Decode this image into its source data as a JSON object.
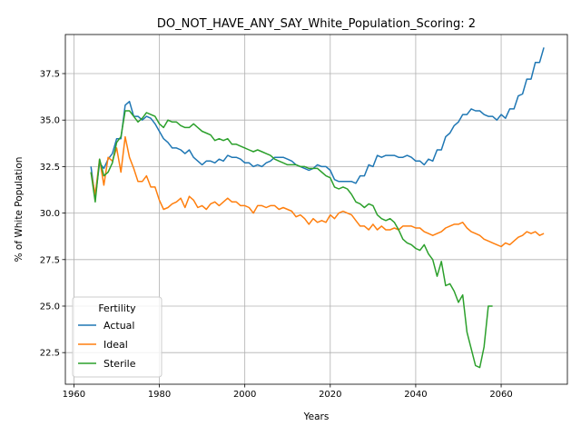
{
  "chart_data": {
    "type": "line",
    "title": "DO_NOT_HAVE_ANY_SAY_White_Population_Scoring: 2",
    "xlabel": "Years",
    "ylabel": "% of White Population",
    "xlim": [
      1958,
      2075.5
    ],
    "ylim": [
      20.8,
      39.6
    ],
    "xticks": [
      1960,
      1980,
      2000,
      2020,
      2040,
      2060
    ],
    "yticks": [
      22.5,
      25.0,
      27.5,
      30.0,
      32.5,
      35.0,
      37.5
    ],
    "ytick_labels": [
      "22.5",
      "25.0",
      "27.5",
      "30.0",
      "32.5",
      "35.0",
      "37.5"
    ],
    "grid": true,
    "legend": {
      "title": "Fertility",
      "placement": "lower-left"
    },
    "series": [
      {
        "name": "Actual",
        "color": "#1f77b4",
        "points": [
          [
            1964,
            32.5
          ],
          [
            1965,
            30.8
          ],
          [
            1966,
            32.7
          ],
          [
            1967,
            32.4
          ],
          [
            1968,
            32.9
          ],
          [
            1969,
            33.2
          ],
          [
            1970,
            34.0
          ],
          [
            1971,
            34.0
          ],
          [
            1972,
            35.8
          ],
          [
            1973,
            36.0
          ],
          [
            1974,
            35.2
          ],
          [
            1975,
            35.2
          ],
          [
            1976,
            35.0
          ],
          [
            1977,
            35.2
          ],
          [
            1978,
            35.1
          ],
          [
            1979,
            34.8
          ],
          [
            1980,
            34.4
          ],
          [
            1981,
            34.0
          ],
          [
            1982,
            33.8
          ],
          [
            1983,
            33.5
          ],
          [
            1984,
            33.5
          ],
          [
            1985,
            33.4
          ],
          [
            1986,
            33.2
          ],
          [
            1987,
            33.4
          ],
          [
            1988,
            33.0
          ],
          [
            1989,
            32.8
          ],
          [
            1990,
            32.6
          ],
          [
            1991,
            32.8
          ],
          [
            1992,
            32.8
          ],
          [
            1993,
            32.7
          ],
          [
            1994,
            32.9
          ],
          [
            1995,
            32.8
          ],
          [
            1996,
            33.1
          ],
          [
            1997,
            33.0
          ],
          [
            1998,
            33.0
          ],
          [
            1999,
            32.9
          ],
          [
            2000,
            32.7
          ],
          [
            2001,
            32.7
          ],
          [
            2002,
            32.5
          ],
          [
            2003,
            32.6
          ],
          [
            2004,
            32.5
          ],
          [
            2005,
            32.7
          ],
          [
            2006,
            32.8
          ],
          [
            2007,
            33.0
          ],
          [
            2008,
            33.0
          ],
          [
            2009,
            33.0
          ],
          [
            2010,
            32.9
          ],
          [
            2011,
            32.8
          ],
          [
            2012,
            32.6
          ],
          [
            2013,
            32.5
          ],
          [
            2014,
            32.4
          ],
          [
            2015,
            32.3
          ],
          [
            2016,
            32.4
          ],
          [
            2017,
            32.6
          ],
          [
            2018,
            32.5
          ],
          [
            2019,
            32.5
          ],
          [
            2020,
            32.3
          ],
          [
            2021,
            31.8
          ],
          [
            2022,
            31.7
          ],
          [
            2023,
            31.7
          ],
          [
            2024,
            31.7
          ],
          [
            2025,
            31.7
          ],
          [
            2026,
            31.6
          ],
          [
            2027,
            32.0
          ],
          [
            2028,
            32.0
          ],
          [
            2029,
            32.6
          ],
          [
            2030,
            32.5
          ],
          [
            2031,
            33.1
          ],
          [
            2032,
            33.0
          ],
          [
            2033,
            33.1
          ],
          [
            2034,
            33.1
          ],
          [
            2035,
            33.1
          ],
          [
            2036,
            33.0
          ],
          [
            2037,
            33.0
          ],
          [
            2038,
            33.1
          ],
          [
            2039,
            33.0
          ],
          [
            2040,
            32.8
          ],
          [
            2041,
            32.8
          ],
          [
            2042,
            32.6
          ],
          [
            2043,
            32.9
          ],
          [
            2044,
            32.8
          ],
          [
            2045,
            33.4
          ],
          [
            2046,
            33.4
          ],
          [
            2047,
            34.1
          ],
          [
            2048,
            34.3
          ],
          [
            2049,
            34.7
          ],
          [
            2050,
            34.9
          ],
          [
            2051,
            35.3
          ],
          [
            2052,
            35.3
          ],
          [
            2053,
            35.6
          ],
          [
            2054,
            35.5
          ],
          [
            2055,
            35.5
          ],
          [
            2056,
            35.3
          ],
          [
            2057,
            35.2
          ],
          [
            2058,
            35.2
          ],
          [
            2059,
            35.0
          ],
          [
            2060,
            35.3
          ],
          [
            2061,
            35.1
          ],
          [
            2062,
            35.6
          ],
          [
            2063,
            35.6
          ],
          [
            2064,
            36.3
          ],
          [
            2065,
            36.4
          ],
          [
            2066,
            37.2
          ],
          [
            2067,
            37.2
          ],
          [
            2068,
            38.1
          ],
          [
            2069,
            38.1
          ],
          [
            2070,
            38.9
          ]
        ]
      },
      {
        "name": "Ideal",
        "color": "#ff7f0e",
        "points": [
          [
            1964,
            32.2
          ],
          [
            1965,
            31.0
          ],
          [
            1966,
            32.9
          ],
          [
            1967,
            31.5
          ],
          [
            1968,
            33.0
          ],
          [
            1969,
            32.8
          ],
          [
            1970,
            33.5
          ],
          [
            1971,
            32.2
          ],
          [
            1972,
            34.1
          ],
          [
            1973,
            33.0
          ],
          [
            1974,
            32.4
          ],
          [
            1975,
            31.7
          ],
          [
            1976,
            31.7
          ],
          [
            1977,
            32.0
          ],
          [
            1978,
            31.4
          ],
          [
            1979,
            31.4
          ],
          [
            1980,
            30.7
          ],
          [
            1981,
            30.2
          ],
          [
            1982,
            30.3
          ],
          [
            1983,
            30.5
          ],
          [
            1984,
            30.6
          ],
          [
            1985,
            30.8
          ],
          [
            1986,
            30.3
          ],
          [
            1987,
            30.9
          ],
          [
            1988,
            30.7
          ],
          [
            1989,
            30.3
          ],
          [
            1990,
            30.4
          ],
          [
            1991,
            30.2
          ],
          [
            1992,
            30.5
          ],
          [
            1993,
            30.6
          ],
          [
            1994,
            30.4
          ],
          [
            1995,
            30.6
          ],
          [
            1996,
            30.8
          ],
          [
            1997,
            30.6
          ],
          [
            1998,
            30.6
          ],
          [
            1999,
            30.4
          ],
          [
            2000,
            30.4
          ],
          [
            2001,
            30.3
          ],
          [
            2002,
            30.0
          ],
          [
            2003,
            30.4
          ],
          [
            2004,
            30.4
          ],
          [
            2005,
            30.3
          ],
          [
            2006,
            30.4
          ],
          [
            2007,
            30.4
          ],
          [
            2008,
            30.2
          ],
          [
            2009,
            30.3
          ],
          [
            2010,
            30.2
          ],
          [
            2011,
            30.1
          ],
          [
            2012,
            29.8
          ],
          [
            2013,
            29.9
          ],
          [
            2014,
            29.7
          ],
          [
            2015,
            29.4
          ],
          [
            2016,
            29.7
          ],
          [
            2017,
            29.5
          ],
          [
            2018,
            29.6
          ],
          [
            2019,
            29.5
          ],
          [
            2020,
            29.9
          ],
          [
            2021,
            29.7
          ],
          [
            2022,
            30.0
          ],
          [
            2023,
            30.1
          ],
          [
            2024,
            30.0
          ],
          [
            2025,
            29.9
          ],
          [
            2026,
            29.6
          ],
          [
            2027,
            29.3
          ],
          [
            2028,
            29.3
          ],
          [
            2029,
            29.1
          ],
          [
            2030,
            29.4
          ],
          [
            2031,
            29.1
          ],
          [
            2032,
            29.3
          ],
          [
            2033,
            29.1
          ],
          [
            2034,
            29.1
          ],
          [
            2035,
            29.2
          ],
          [
            2036,
            29.1
          ],
          [
            2037,
            29.3
          ],
          [
            2038,
            29.3
          ],
          [
            2039,
            29.3
          ],
          [
            2040,
            29.2
          ],
          [
            2041,
            29.2
          ],
          [
            2042,
            29.0
          ],
          [
            2043,
            28.9
          ],
          [
            2044,
            28.8
          ],
          [
            2045,
            28.9
          ],
          [
            2046,
            29.0
          ],
          [
            2047,
            29.2
          ],
          [
            2048,
            29.3
          ],
          [
            2049,
            29.4
          ],
          [
            2050,
            29.4
          ],
          [
            2051,
            29.5
          ],
          [
            2052,
            29.2
          ],
          [
            2053,
            29.0
          ],
          [
            2054,
            28.9
          ],
          [
            2055,
            28.8
          ],
          [
            2056,
            28.6
          ],
          [
            2057,
            28.5
          ],
          [
            2058,
            28.4
          ],
          [
            2059,
            28.3
          ],
          [
            2060,
            28.2
          ],
          [
            2061,
            28.4
          ],
          [
            2062,
            28.3
          ],
          [
            2063,
            28.5
          ],
          [
            2064,
            28.7
          ],
          [
            2065,
            28.8
          ],
          [
            2066,
            29.0
          ],
          [
            2067,
            28.9
          ],
          [
            2068,
            29.0
          ],
          [
            2069,
            28.8
          ],
          [
            2070,
            28.9
          ]
        ]
      },
      {
        "name": "Sterile",
        "color": "#2ca02c",
        "points": [
          [
            1964,
            32.2
          ],
          [
            1965,
            30.6
          ],
          [
            1966,
            32.9
          ],
          [
            1967,
            32.0
          ],
          [
            1968,
            32.2
          ],
          [
            1969,
            32.7
          ],
          [
            1970,
            33.8
          ],
          [
            1971,
            34.1
          ],
          [
            1972,
            35.5
          ],
          [
            1973,
            35.5
          ],
          [
            1974,
            35.2
          ],
          [
            1975,
            34.9
          ],
          [
            1976,
            35.1
          ],
          [
            1977,
            35.4
          ],
          [
            1978,
            35.3
          ],
          [
            1979,
            35.2
          ],
          [
            1980,
            34.8
          ],
          [
            1981,
            34.6
          ],
          [
            1982,
            35.0
          ],
          [
            1983,
            34.9
          ],
          [
            1984,
            34.9
          ],
          [
            1985,
            34.7
          ],
          [
            1986,
            34.6
          ],
          [
            1987,
            34.6
          ],
          [
            1988,
            34.8
          ],
          [
            1989,
            34.6
          ],
          [
            1990,
            34.4
          ],
          [
            1991,
            34.3
          ],
          [
            1992,
            34.2
          ],
          [
            1993,
            33.9
          ],
          [
            1994,
            34.0
          ],
          [
            1995,
            33.9
          ],
          [
            1996,
            34.0
          ],
          [
            1997,
            33.7
          ],
          [
            1998,
            33.7
          ],
          [
            1999,
            33.6
          ],
          [
            2000,
            33.5
          ],
          [
            2001,
            33.4
          ],
          [
            2002,
            33.3
          ],
          [
            2003,
            33.4
          ],
          [
            2004,
            33.3
          ],
          [
            2005,
            33.2
          ],
          [
            2006,
            33.1
          ],
          [
            2007,
            32.9
          ],
          [
            2008,
            32.8
          ],
          [
            2009,
            32.7
          ],
          [
            2010,
            32.6
          ],
          [
            2011,
            32.6
          ],
          [
            2012,
            32.6
          ],
          [
            2013,
            32.5
          ],
          [
            2014,
            32.5
          ],
          [
            2015,
            32.4
          ],
          [
            2016,
            32.4
          ],
          [
            2017,
            32.4
          ],
          [
            2018,
            32.2
          ],
          [
            2019,
            32.0
          ],
          [
            2020,
            31.9
          ],
          [
            2021,
            31.4
          ],
          [
            2022,
            31.3
          ],
          [
            2023,
            31.4
          ],
          [
            2024,
            31.3
          ],
          [
            2025,
            31.0
          ],
          [
            2026,
            30.6
          ],
          [
            2027,
            30.5
          ],
          [
            2028,
            30.3
          ],
          [
            2029,
            30.5
          ],
          [
            2030,
            30.4
          ],
          [
            2031,
            29.9
          ],
          [
            2032,
            29.7
          ],
          [
            2033,
            29.6
          ],
          [
            2034,
            29.7
          ],
          [
            2035,
            29.5
          ],
          [
            2036,
            29.1
          ],
          [
            2037,
            28.6
          ],
          [
            2038,
            28.4
          ],
          [
            2039,
            28.3
          ],
          [
            2040,
            28.1
          ],
          [
            2041,
            28.0
          ],
          [
            2042,
            28.3
          ],
          [
            2043,
            27.8
          ],
          [
            2044,
            27.5
          ],
          [
            2045,
            26.6
          ],
          [
            2046,
            27.4
          ],
          [
            2047,
            26.1
          ],
          [
            2048,
            26.2
          ],
          [
            2049,
            25.8
          ],
          [
            2050,
            25.2
          ],
          [
            2051,
            25.6
          ],
          [
            2052,
            23.6
          ],
          [
            2053,
            22.7
          ],
          [
            2054,
            21.8
          ],
          [
            2055,
            21.7
          ],
          [
            2056,
            22.8
          ],
          [
            2057,
            25.0
          ],
          [
            2058,
            25.0
          ]
        ]
      }
    ]
  }
}
